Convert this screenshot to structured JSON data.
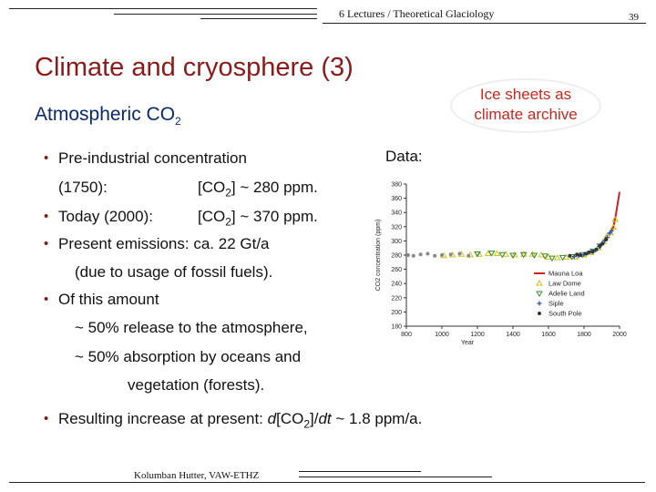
{
  "header": {
    "title": "6 Lectures / Theoretical Glaciology",
    "page_number": "39"
  },
  "footer": {
    "author": "Kolumban Hutter, VAW-ETHZ"
  },
  "slide": {
    "title": "Climate and cryosphere (3)",
    "subtitle_prefix": "Atmospheric CO",
    "subtitle_sub": "2",
    "callout_line1": "Ice sheets as",
    "callout_line2": "climate archive",
    "data_label": "Data:",
    "bullet_char": "•",
    "b1_text": "Pre-industrial concentration",
    "b1b_left": "(1750):",
    "b1b_pre": "[CO",
    "b1b_sub": "2",
    "b1b_post": "] ~ 280 ppm.",
    "b2_left": "Today (2000):",
    "b2_pre": "[CO",
    "b2_sub": "2",
    "b2_post": "] ~ 370 ppm.",
    "b3_text": "Present emissions: ca. 22 Gt/a",
    "b3b_text": "(due to usage of fossil fuels).",
    "b4_text": "Of this amount",
    "b4b_text": "~ 50% release to the atmosphere,",
    "b4c_text": "~ 50% absorption by oceans and",
    "b4d_text": "vegetation (forests).",
    "b5_pre": "Resulting increase at present: ",
    "b5_d": "d",
    "b5_mid": "[CO",
    "b5_sub": "2",
    "b5_post": "]/",
    "b5_dt": "dt",
    "b5_tail": " ~ 1.8 ppm/a."
  },
  "chart_data": {
    "type": "scatter",
    "ylabel": "CO2 concentration (ppm)",
    "xlabel": "Year",
    "xlim": [
      800,
      2000
    ],
    "ylim": [
      180,
      380
    ],
    "xticks": [
      800,
      1000,
      1200,
      1400,
      1600,
      1800,
      2000
    ],
    "yticks": [
      180,
      200,
      220,
      240,
      260,
      280,
      300,
      320,
      340,
      360,
      380
    ],
    "legend_position": "bottom-right",
    "series": [
      {
        "name": "Mauna Loa",
        "color": "#cc2222",
        "marker": "line",
        "points": [
          [
            1958,
            315
          ],
          [
            1965,
            320
          ],
          [
            1970,
            325
          ],
          [
            1975,
            331
          ],
          [
            1980,
            338
          ],
          [
            1985,
            346
          ],
          [
            1990,
            354
          ],
          [
            1995,
            361
          ],
          [
            2000,
            369
          ]
        ]
      },
      {
        "name": "Law Dome",
        "color": "#d4c020",
        "marker": "triangle",
        "points": [
          [
            1010,
            279
          ],
          [
            1060,
            280
          ],
          [
            1110,
            281
          ],
          [
            1160,
            280
          ],
          [
            1210,
            281
          ],
          [
            1260,
            282
          ],
          [
            1310,
            282
          ],
          [
            1360,
            281
          ],
          [
            1410,
            280
          ],
          [
            1460,
            281
          ],
          [
            1510,
            281
          ],
          [
            1560,
            280
          ],
          [
            1600,
            277
          ],
          [
            1650,
            276
          ],
          [
            1700,
            277
          ],
          [
            1750,
            277
          ],
          [
            1800,
            280
          ],
          [
            1840,
            283
          ],
          [
            1880,
            290
          ],
          [
            1910,
            299
          ],
          [
            1930,
            307
          ],
          [
            1950,
            311
          ],
          [
            1965,
            319
          ],
          [
            1975,
            330
          ]
        ]
      },
      {
        "name": "Adelie Land",
        "color": "#3a8a2e",
        "marker": "triangle-down",
        "points": [
          [
            1200,
            282
          ],
          [
            1280,
            283
          ],
          [
            1340,
            281
          ],
          [
            1400,
            280
          ],
          [
            1460,
            281
          ],
          [
            1520,
            280
          ],
          [
            1580,
            279
          ],
          [
            1620,
            276
          ],
          [
            1680,
            277
          ],
          [
            1730,
            278
          ],
          [
            1790,
            281
          ],
          [
            1850,
            286
          ],
          [
            1890,
            293
          ]
        ]
      },
      {
        "name": "Siple",
        "color": "#2a50b0",
        "marker": "plus",
        "points": [
          [
            1745,
            278
          ],
          [
            1770,
            279
          ],
          [
            1800,
            281
          ],
          [
            1820,
            283
          ],
          [
            1845,
            285
          ],
          [
            1865,
            287
          ],
          [
            1885,
            292
          ],
          [
            1900,
            296
          ],
          [
            1915,
            300
          ],
          [
            1930,
            305
          ],
          [
            1945,
            311
          ],
          [
            1955,
            314
          ]
        ]
      },
      {
        "name": "South Pole",
        "color": "#333333",
        "marker": "circle",
        "points": [
          [
            1720,
            279
          ],
          [
            1760,
            281
          ],
          [
            1780,
            280
          ],
          [
            1810,
            282
          ],
          [
            1830,
            284
          ],
          [
            1850,
            285
          ],
          [
            1870,
            288
          ],
          [
            1890,
            293
          ],
          [
            1905,
            296
          ],
          [
            1925,
            302
          ]
        ]
      },
      {
        "name": "",
        "color": "#888888",
        "marker": "circle",
        "points": [
          [
            810,
            280
          ],
          [
            840,
            279
          ],
          [
            880,
            281
          ],
          [
            920,
            282
          ],
          [
            960,
            279
          ],
          [
            1000,
            280
          ],
          [
            1050,
            281
          ],
          [
            1100,
            282
          ],
          [
            1150,
            279
          ]
        ]
      }
    ]
  }
}
